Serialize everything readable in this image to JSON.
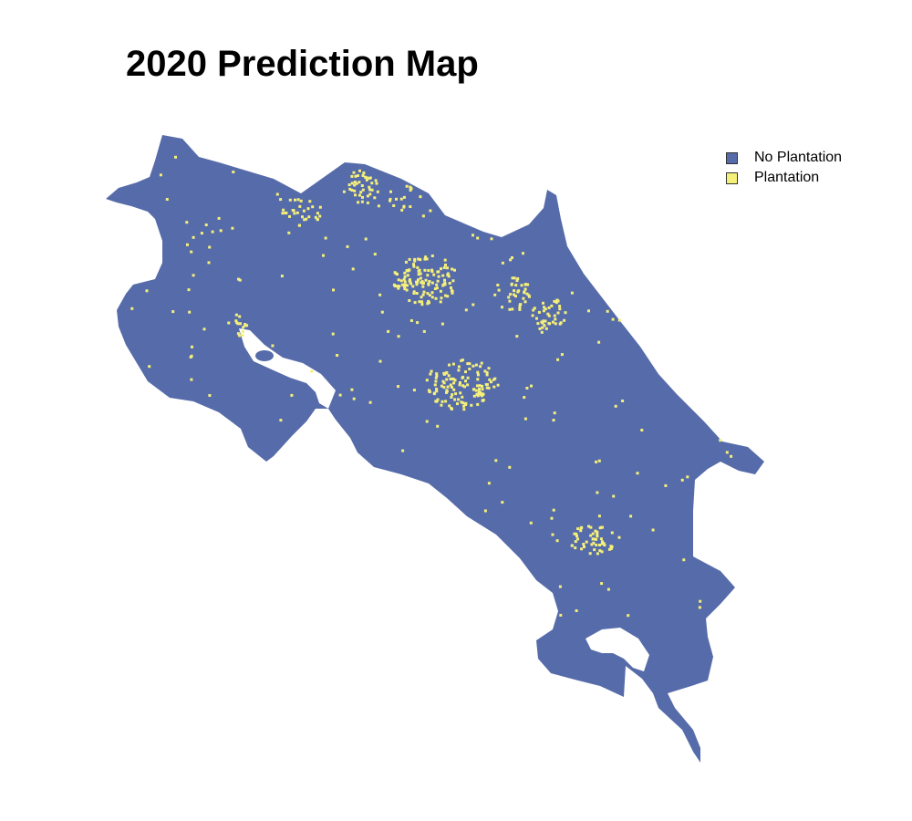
{
  "title": "2020 Prediction Map",
  "legend": {
    "items": [
      {
        "label": "No Plantation",
        "color": "#566ba9"
      },
      {
        "label": "Plantation",
        "color": "#f5f07a"
      }
    ]
  },
  "map": {
    "region": "Costa Rica",
    "land_color": "#566ba9",
    "plantation_color": "#f5f07a",
    "background_color": "#ffffff"
  }
}
